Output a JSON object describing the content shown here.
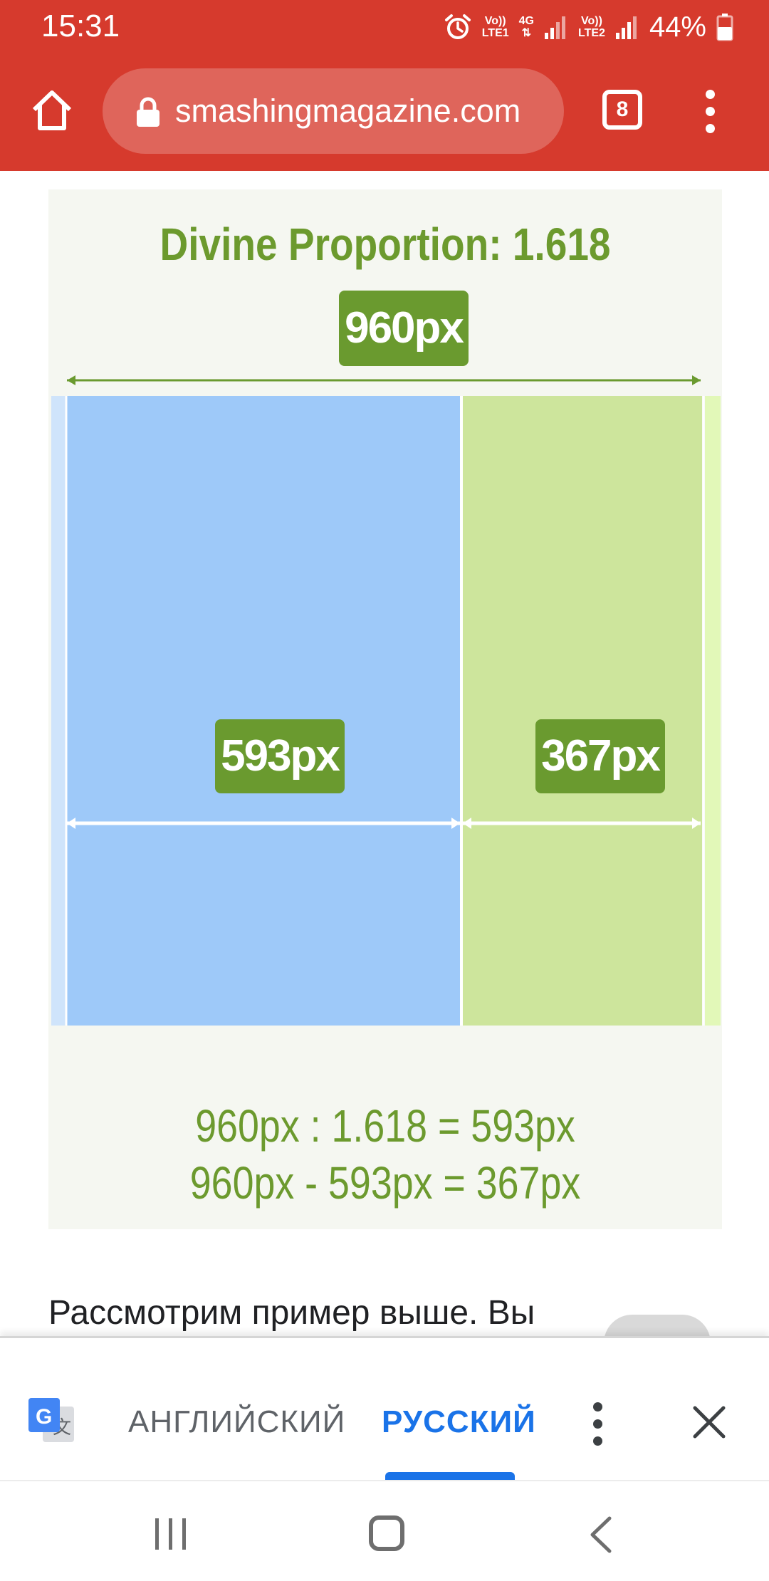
{
  "status_bar": {
    "time": "15:31",
    "net1_top": "Vo))",
    "net1_bottom": "LTE1",
    "net_type": "4G",
    "net2_top": "Vo))",
    "net2_bottom": "LTE2",
    "battery": "44%",
    "icons": [
      "alarm-icon",
      "signal-icon",
      "signal-icon",
      "battery-icon"
    ]
  },
  "browser": {
    "url": "smashingmagazine.com",
    "tab_count": "8",
    "toolbar_color": "#d63a2d",
    "icons": [
      "home-icon",
      "lock-icon",
      "tabs-icon",
      "more-vert-icon"
    ]
  },
  "figure": {
    "title": "Divine Proportion: 1.618",
    "total_width_label": "960px",
    "left_width_label": "593px",
    "right_width_label": "367px",
    "formula_line1": "960px : 1.618 = 593px",
    "formula_line2": "960px - 593px = 367px",
    "colors": {
      "blue_column": "#9ec9f9",
      "green_column": "#cde59c",
      "accent_green": "#6a9a2f"
    }
  },
  "article": {
    "paragraph_start": "Рассмотрим пример выше. Вы"
  },
  "translate_bar": {
    "source_language": "АНГЛИЙСКИЙ",
    "target_language": "РУССКИЙ",
    "selected": "РУССКИЙ",
    "accent_color": "#1a73e8",
    "icons": [
      "google-translate-icon",
      "more-vert-icon",
      "close-icon"
    ]
  },
  "nav_bar": {
    "icons": [
      "recent-apps-icon",
      "home-icon",
      "back-icon"
    ]
  }
}
